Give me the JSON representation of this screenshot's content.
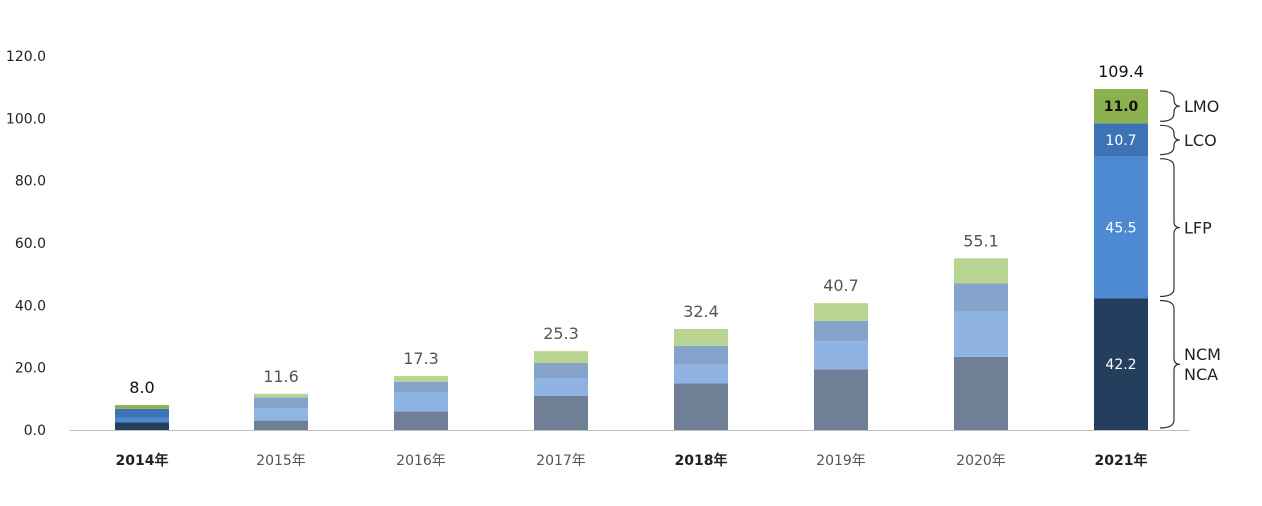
{
  "chart_data": {
    "type": "bar",
    "stacked": true,
    "title": "",
    "xlabel": "",
    "ylabel": "",
    "ylim": [
      0,
      120
    ],
    "yticks": [
      "0.0",
      "20.0",
      "40.0",
      "60.0",
      "80.0",
      "100.0",
      "120.0"
    ],
    "categories": [
      "2014年",
      "2015年",
      "2016年",
      "2017年",
      "2018年",
      "2019年",
      "2020年",
      "2021年"
    ],
    "bold_categories": [
      "2014年",
      "2018年",
      "2021年"
    ],
    "totals": [
      8.0,
      11.6,
      17.3,
      25.3,
      32.4,
      40.7,
      55.1,
      109.4
    ],
    "totals_text": [
      "8.0",
      "11.6",
      "17.3",
      "25.3",
      "32.4",
      "40.7",
      "55.1",
      "109.4"
    ],
    "segment_colors_muted": [
      "#6f7f95",
      "#8fb4e3",
      "#85a3cb",
      "#b9d390"
    ],
    "segment_colors_highlight": [
      "#243f5e",
      "#4e89d4",
      "#3e72b7",
      "#8bb24e"
    ],
    "highlight_categories": [
      "2014年",
      "2021年"
    ],
    "series": [
      {
        "values": [
          2.5,
          3.0,
          6.0,
          11.0,
          15.0,
          19.5,
          23.5,
          42.2
        ]
      },
      {
        "values": [
          1.5,
          4.0,
          6.0,
          5.5,
          6.0,
          9.0,
          14.5,
          45.5
        ]
      },
      {
        "values": [
          2.8,
          3.5,
          3.5,
          5.0,
          6.0,
          6.5,
          9.0,
          10.7
        ]
      },
      {
        "values": [
          1.2,
          1.1,
          1.8,
          3.8,
          5.4,
          5.7,
          8.1,
          11.0
        ]
      }
    ],
    "segment_labels_2021": [
      "42.2",
      "45.5",
      "10.7",
      "11.0"
    ],
    "brackets": [
      {
        "label": "NCM\nNCA",
        "from": 0,
        "to": 42.2
      },
      {
        "label": "LFP",
        "from": 42.2,
        "to": 87.7
      },
      {
        "label": "LCO",
        "from": 87.7,
        "to": 98.4
      },
      {
        "label": "LMO",
        "from": 98.4,
        "to": 109.4
      }
    ],
    "grid": false,
    "legend": "none"
  }
}
